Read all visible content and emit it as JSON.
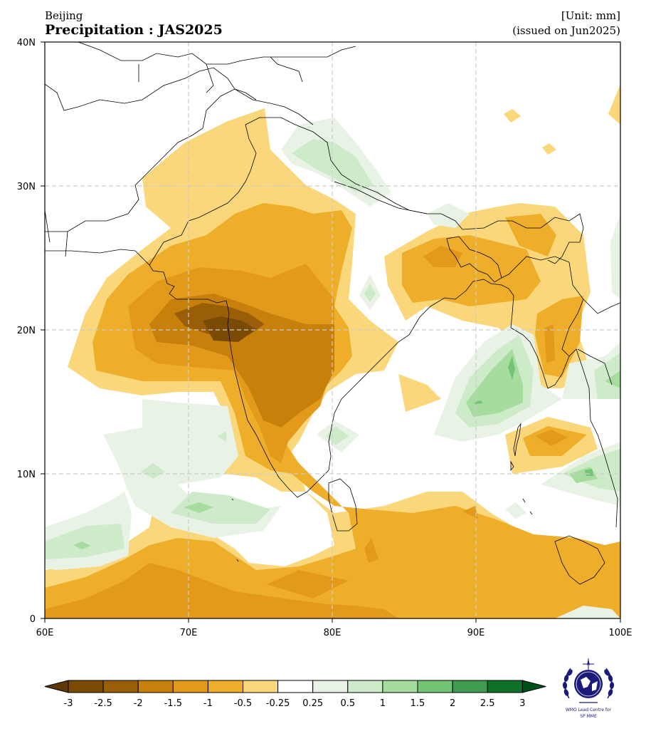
{
  "header": {
    "source": "Beijing",
    "title": "Precipitation : JAS2025",
    "unit": "[Unit: mm]",
    "issued": "(issued on Jun2025)"
  },
  "map": {
    "lon_range": [
      60,
      100
    ],
    "lat_range": [
      0,
      40
    ],
    "lon_ticks": [
      "60E",
      "70E",
      "80E",
      "90E",
      "100E"
    ],
    "lat_ticks": [
      "0",
      "10N",
      "20N",
      "30N",
      "40N"
    ],
    "gridlines": "dashed"
  },
  "colorbar": {
    "levels": [
      "-3",
      "-2.5",
      "-2",
      "-1.5",
      "-1",
      "-0.5",
      "-0.25",
      "0.25",
      "0.5",
      "1",
      "1.5",
      "2",
      "2.5",
      "3"
    ],
    "colors": [
      "#7a4a06",
      "#9a5e08",
      "#c8800c",
      "#e39a1a",
      "#efae2a",
      "#f9d77a",
      "#ffffff",
      "#e8f3e6",
      "#cdebc9",
      "#a7dc9f",
      "#74c476",
      "#3e9b4f",
      "#0f7028"
    ],
    "extend_low_color": "#5c3805",
    "extend_high_color": "#00501a"
  },
  "logo": {
    "line1": "WMO Lead Centre for",
    "line2": "SP MME"
  }
}
